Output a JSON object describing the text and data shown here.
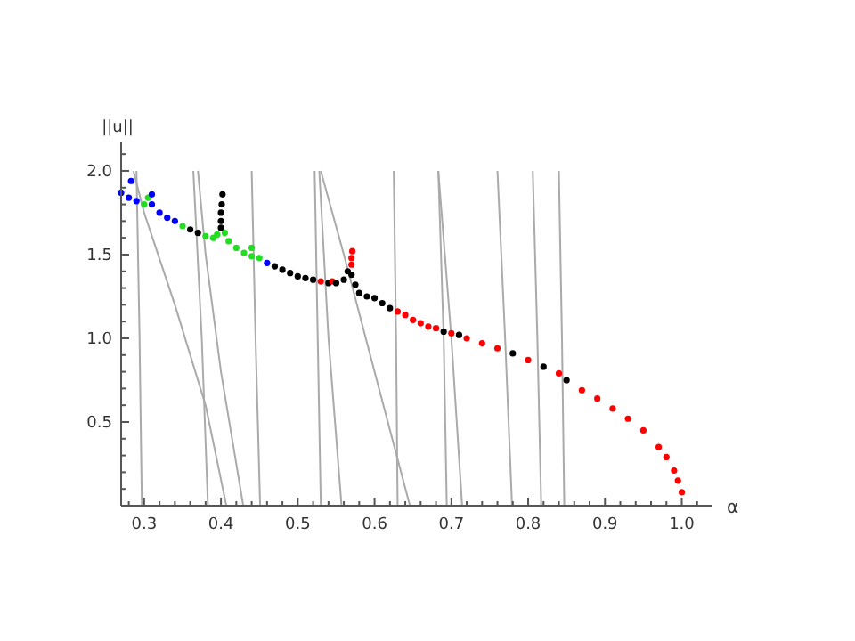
{
  "chart_data": {
    "type": "scatter",
    "xlabel": "α",
    "ylabel": "||u||",
    "xlim": [
      0.27,
      1.04
    ],
    "ylim": [
      0,
      2.17
    ],
    "xticks": [
      {
        "value": 0.28,
        "label": null
      },
      0.3,
      {
        "value": 0.32,
        "label": null
      },
      {
        "value": 0.34,
        "label": null
      },
      {
        "value": 0.36,
        "label": null
      },
      {
        "value": 0.38,
        "label": null
      },
      0.4,
      {
        "value": 0.42,
        "label": null
      },
      {
        "value": 0.44,
        "label": null
      },
      {
        "value": 0.46,
        "label": null
      },
      {
        "value": 0.48,
        "label": null
      },
      0.5,
      {
        "value": 0.52,
        "label": null
      },
      {
        "value": 0.54,
        "label": null
      },
      {
        "value": 0.56,
        "label": null
      },
      {
        "value": 0.58,
        "label": null
      },
      0.6,
      {
        "value": 0.62,
        "label": null
      },
      {
        "value": 0.64,
        "label": null
      },
      {
        "value": 0.66,
        "label": null
      },
      {
        "value": 0.68,
        "label": null
      },
      0.7,
      {
        "value": 0.72,
        "label": null
      },
      {
        "value": 0.74,
        "label": null
      },
      {
        "value": 0.76,
        "label": null
      },
      {
        "value": 0.78,
        "label": null
      },
      0.8,
      {
        "value": 0.82,
        "label": null
      },
      {
        "value": 0.84,
        "label": null
      },
      {
        "value": 0.86,
        "label": null
      },
      {
        "value": 0.88,
        "label": null
      },
      0.9,
      {
        "value": 0.92,
        "label": null
      },
      {
        "value": 0.94,
        "label": null
      },
      {
        "value": 0.96,
        "label": null
      },
      {
        "value": 0.98,
        "label": null
      },
      {
        "value": 1,
        "label": "1.0"
      },
      {
        "value": 1.02,
        "label": null
      }
    ],
    "yticks": [
      {
        "value": 0.1,
        "label": null
      },
      {
        "value": 0.2,
        "label": null
      },
      {
        "value": 0.3,
        "label": null
      },
      {
        "value": 0.4,
        "label": null
      },
      0.5,
      {
        "value": 0.6,
        "label": null
      },
      {
        "value": 0.7,
        "label": null
      },
      {
        "value": 0.8,
        "label": null
      },
      {
        "value": 0.9,
        "label": null
      },
      {
        "value": 1,
        "label": "1.0"
      },
      {
        "value": 1.1,
        "label": null
      },
      {
        "value": 1.2,
        "label": null
      },
      {
        "value": 1.3,
        "label": null
      },
      {
        "value": 1.4,
        "label": null
      },
      1.5,
      {
        "value": 1.6,
        "label": null
      },
      {
        "value": 1.7,
        "label": null
      },
      {
        "value": 1.8,
        "label": null
      },
      {
        "value": 1.9,
        "label": null
      },
      {
        "value": 2,
        "label": "2.0"
      },
      {
        "value": 2.1,
        "label": null
      }
    ],
    "grid": false,
    "series": [
      {
        "type": "line",
        "color": "#aaaaaa",
        "x": [
          0.286,
          0.3,
          0.34,
          0.38,
          0.407
        ],
        "values": [
          2.0,
          1.75,
          1.2,
          0.6,
          0.0
        ]
      },
      {
        "type": "line",
        "color": "#aaaaaa",
        "x": [
          0.29,
          0.294,
          0.297
        ],
        "values": [
          2.0,
          1.0,
          0.0
        ]
      },
      {
        "type": "line",
        "color": "#aaaaaa",
        "x": [
          0.364,
          0.375,
          0.383
        ],
        "values": [
          2.0,
          1.0,
          0.0
        ]
      },
      {
        "type": "line",
        "color": "#aaaaaa",
        "x": [
          0.37,
          0.38,
          0.4,
          0.429
        ],
        "values": [
          2.0,
          1.5,
          0.8,
          0.0
        ]
      },
      {
        "type": "line",
        "color": "#aaaaaa",
        "x": [
          0.44,
          0.445,
          0.451
        ],
        "values": [
          2.0,
          1.0,
          0.0
        ]
      },
      {
        "type": "line",
        "color": "#aaaaaa",
        "x": [
          0.522,
          0.526,
          0.53
        ],
        "values": [
          2.0,
          1.0,
          0.0
        ]
      },
      {
        "type": "line",
        "color": "#aaaaaa",
        "x": [
          0.53,
          0.56,
          0.6,
          0.646
        ],
        "values": [
          2.0,
          1.5,
          0.8,
          0.0
        ]
      },
      {
        "type": "line",
        "color": "#aaaaaa",
        "x": [
          0.528,
          0.54,
          0.557
        ],
        "values": [
          2.0,
          1.0,
          0.0
        ]
      },
      {
        "type": "line",
        "color": "#aaaaaa",
        "x": [
          0.625,
          0.628,
          0.63
        ],
        "values": [
          2.0,
          1.0,
          0.0
        ]
      },
      {
        "type": "line",
        "color": "#aaaaaa",
        "x": [
          0.683,
          0.69,
          0.694
        ],
        "values": [
          2.0,
          1.0,
          0.0
        ]
      },
      {
        "type": "line",
        "color": "#aaaaaa",
        "x": [
          0.683,
          0.7,
          0.714
        ],
        "values": [
          2.0,
          1.0,
          0.0
        ]
      },
      {
        "type": "line",
        "color": "#aaaaaa",
        "x": [
          0.76,
          0.77,
          0.779
        ],
        "values": [
          2.0,
          1.0,
          0.0
        ]
      },
      {
        "type": "line",
        "color": "#aaaaaa",
        "x": [
          0.806,
          0.812,
          0.817
        ],
        "values": [
          2.0,
          1.0,
          0.0
        ]
      },
      {
        "type": "line",
        "color": "#aaaaaa",
        "x": [
          0.84,
          0.844,
          0.847
        ],
        "values": [
          2.0,
          1.0,
          0.0
        ]
      },
      {
        "x": [
          0.27,
          0.28,
          0.29,
          0.3,
          0.305,
          0.31,
          0.32,
          0.33,
          0.34,
          0.35,
          0.36,
          0.37,
          0.38,
          0.39,
          0.395,
          0.4,
          0.405,
          0.41,
          0.42,
          0.43,
          0.44,
          0.45,
          0.46,
          0.47,
          0.48,
          0.49,
          0.5,
          0.51,
          0.52,
          0.53,
          0.54,
          0.545,
          0.55,
          0.56,
          0.565,
          0.57,
          0.575,
          0.58,
          0.59,
          0.6,
          0.61,
          0.62,
          0.63,
          0.64,
          0.65,
          0.66,
          0.67,
          0.68,
          0.69,
          0.7,
          0.71,
          0.72,
          0.74,
          0.76,
          0.78,
          0.8,
          0.82,
          0.84,
          0.85,
          0.87,
          0.89,
          0.91,
          0.93,
          0.95,
          0.97,
          0.98,
          0.99,
          0.995,
          1.0,
          0.283,
          0.31,
          0.4,
          0.4,
          0.401,
          0.402,
          0.44,
          0.57,
          0.57,
          0.571
        ],
        "values": [
          1.87,
          1.84,
          1.82,
          1.8,
          1.84,
          1.8,
          1.75,
          1.72,
          1.7,
          1.67,
          1.65,
          1.63,
          1.61,
          1.6,
          1.62,
          1.66,
          1.63,
          1.58,
          1.54,
          1.51,
          1.49,
          1.48,
          1.45,
          1.43,
          1.41,
          1.39,
          1.37,
          1.36,
          1.35,
          1.34,
          1.33,
          1.34,
          1.33,
          1.35,
          1.4,
          1.38,
          1.32,
          1.27,
          1.25,
          1.24,
          1.21,
          1.18,
          1.16,
          1.14,
          1.11,
          1.09,
          1.07,
          1.06,
          1.04,
          1.03,
          1.02,
          1.0,
          0.97,
          0.94,
          0.91,
          0.87,
          0.83,
          0.79,
          0.75,
          0.69,
          0.64,
          0.58,
          0.52,
          0.45,
          0.35,
          0.29,
          0.21,
          0.15,
          0.08,
          1.94,
          1.86,
          1.7,
          1.75,
          1.8,
          1.86,
          1.54,
          1.44,
          1.48,
          1.52
        ],
        "colors": [
          "#0000ff",
          "#0000ff",
          "#0000ff",
          "#22dd22",
          "#22dd22",
          "#0000ff",
          "#0000ff",
          "#0000ff",
          "#0000ff",
          "#22dd22",
          "#000000",
          "#000000",
          "#22dd22",
          "#22dd22",
          "#22dd22",
          "#000000",
          "#22dd22",
          "#22dd22",
          "#22dd22",
          "#22dd22",
          "#22dd22",
          "#22dd22",
          "#0000ff",
          "#000000",
          "#000000",
          "#000000",
          "#000000",
          "#000000",
          "#000000",
          "#ff0000",
          "#000000",
          "#ff0000",
          "#000000",
          "#000000",
          "#000000",
          "#000000",
          "#000000",
          "#000000",
          "#000000",
          "#000000",
          "#000000",
          "#000000",
          "#ff0000",
          "#ff0000",
          "#ff0000",
          "#ff0000",
          "#ff0000",
          "#ff0000",
          "#000000",
          "#ff0000",
          "#000000",
          "#ff0000",
          "#ff0000",
          "#ff0000",
          "#000000",
          "#ff0000",
          "#000000",
          "#ff0000",
          "#000000",
          "#ff0000",
          "#ff0000",
          "#ff0000",
          "#ff0000",
          "#ff0000",
          "#ff0000",
          "#ff0000",
          "#ff0000",
          "#ff0000",
          "#ff0000",
          "#0000ff",
          "#0000ff",
          "#000000",
          "#000000",
          "#000000",
          "#000000",
          "#22dd22",
          "#ff0000",
          "#ff0000",
          "#ff0000"
        ]
      }
    ]
  }
}
